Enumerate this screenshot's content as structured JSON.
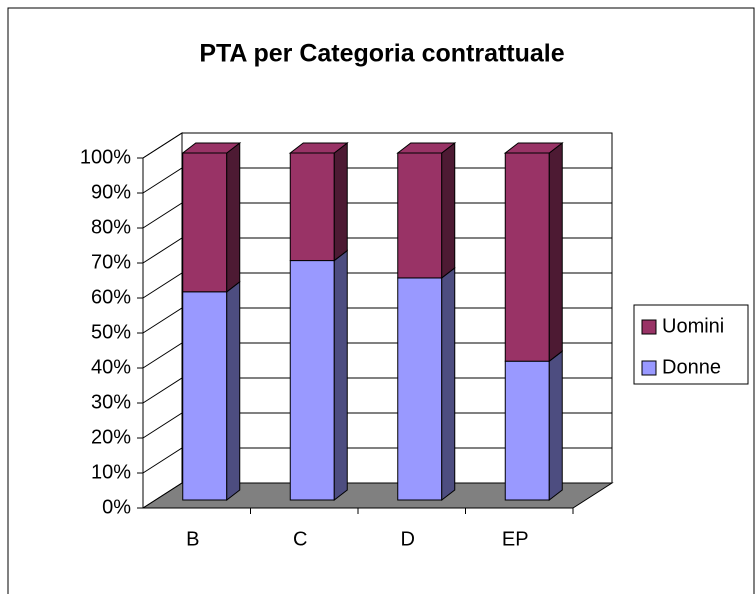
{
  "chart_data": {
    "type": "bar3d_stacked",
    "title": "PTA per Categoria contrattuale",
    "categories": [
      "B",
      "C",
      "D",
      "EP"
    ],
    "series": [
      {
        "name": "Donne",
        "color": "#9999ff",
        "values": [
          60,
          69,
          64,
          40
        ]
      },
      {
        "name": "Uomini",
        "color": "#993366",
        "values": [
          40,
          31,
          36,
          60
        ]
      }
    ],
    "ylim": [
      0,
      100
    ],
    "yticks": [
      {
        "value": 0,
        "label": "0%"
      },
      {
        "value": 10,
        "label": "10%"
      },
      {
        "value": 20,
        "label": "20%"
      },
      {
        "value": 30,
        "label": "30%"
      },
      {
        "value": 40,
        "label": "40%"
      },
      {
        "value": 50,
        "label": "50%"
      },
      {
        "value": 60,
        "label": "60%"
      },
      {
        "value": 70,
        "label": "70%"
      },
      {
        "value": 80,
        "label": "80%"
      },
      {
        "value": 90,
        "label": "90%"
      },
      {
        "value": 100,
        "label": "100%"
      }
    ],
    "grid": true,
    "legend": "right"
  }
}
